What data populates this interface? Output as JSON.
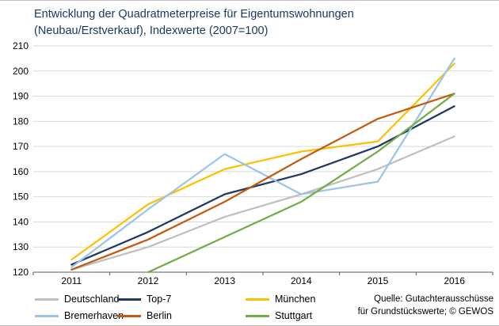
{
  "title": {
    "line1": "Entwicklung der Quadratmeterpreise für Eigentumswohnungen",
    "line2": "(Neubau/Erstverkauf), Indexwerte (2007=100)"
  },
  "source": {
    "line1": "Quelle: Gutachterausschüsse",
    "line2": "für Grundstückswerte; © GEWOS"
  },
  "chart_data": {
    "type": "line",
    "title": "Entwicklung der Quadratmeterpreise für Eigentumswohnungen (Neubau/Erstverkauf), Indexwerte (2007=100)",
    "categories": [
      "2011",
      "2012",
      "2013",
      "2014",
      "2015",
      "2016"
    ],
    "series": [
      {
        "name": "Deutschland",
        "color": "#BFBFBF",
        "values": [
          121,
          130,
          142,
          151,
          161,
          174
        ]
      },
      {
        "name": "Top-7",
        "color": "#1F3864",
        "values": [
          123,
          136,
          151,
          159,
          170,
          186
        ]
      },
      {
        "name": "München",
        "color": "#FFC000",
        "values": [
          125,
          147,
          161,
          168,
          172,
          203
        ]
      },
      {
        "name": "Bremerhaven",
        "color": "#9DC3E6",
        "values": [
          122,
          145,
          167,
          151,
          156,
          205
        ]
      },
      {
        "name": "Berlin",
        "color": "#C55A11",
        "values": [
          121,
          133,
          148,
          165,
          181,
          191
        ]
      },
      {
        "name": "Stuttgart",
        "color": "#70AD47",
        "values": [
          null,
          120,
          134,
          148,
          168,
          191
        ]
      }
    ],
    "xlabel": "",
    "ylabel": "",
    "ylim": [
      120,
      210
    ],
    "ytick_step": 10,
    "grid": true,
    "grid_color": "#D9D9D9",
    "axis_color": "#595959",
    "legend_position": "bottom"
  }
}
